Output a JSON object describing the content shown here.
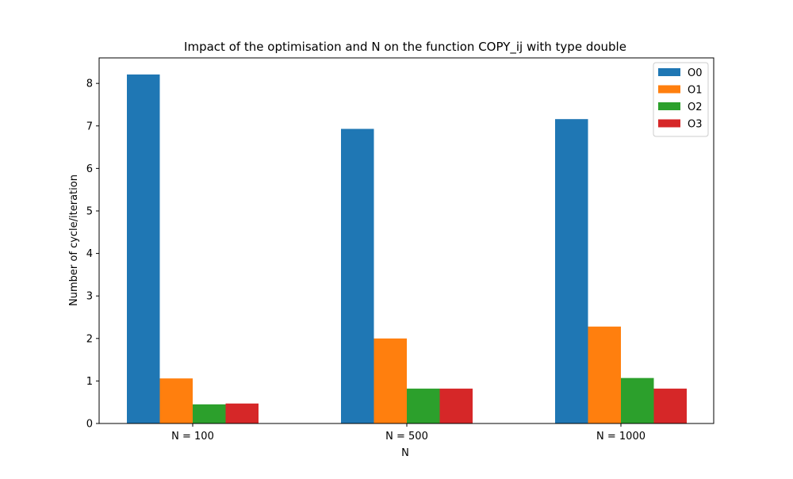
{
  "chart_data": {
    "type": "bar",
    "title": "Impact of the optimisation and N on the function COPY_ij with type double",
    "xlabel": "N",
    "ylabel": "Number of cycle/iteration",
    "categories": [
      "N = 100",
      "N = 500",
      "N = 1000"
    ],
    "series": [
      {
        "name": "O0",
        "color": "#1f77b4",
        "values": [
          8.21,
          6.93,
          7.16
        ]
      },
      {
        "name": "O1",
        "color": "#ff7f0e",
        "values": [
          1.06,
          2.0,
          2.28
        ]
      },
      {
        "name": "O2",
        "color": "#2ca02c",
        "values": [
          0.45,
          0.82,
          1.07
        ]
      },
      {
        "name": "O3",
        "color": "#d62728",
        "values": [
          0.47,
          0.82,
          0.82
        ]
      }
    ],
    "ylim": [
      0,
      8.6
    ],
    "yticks": [
      "0",
      "1",
      "2",
      "3",
      "4",
      "5",
      "6",
      "7",
      "8"
    ],
    "grid": false,
    "legend_position": "top-right"
  }
}
